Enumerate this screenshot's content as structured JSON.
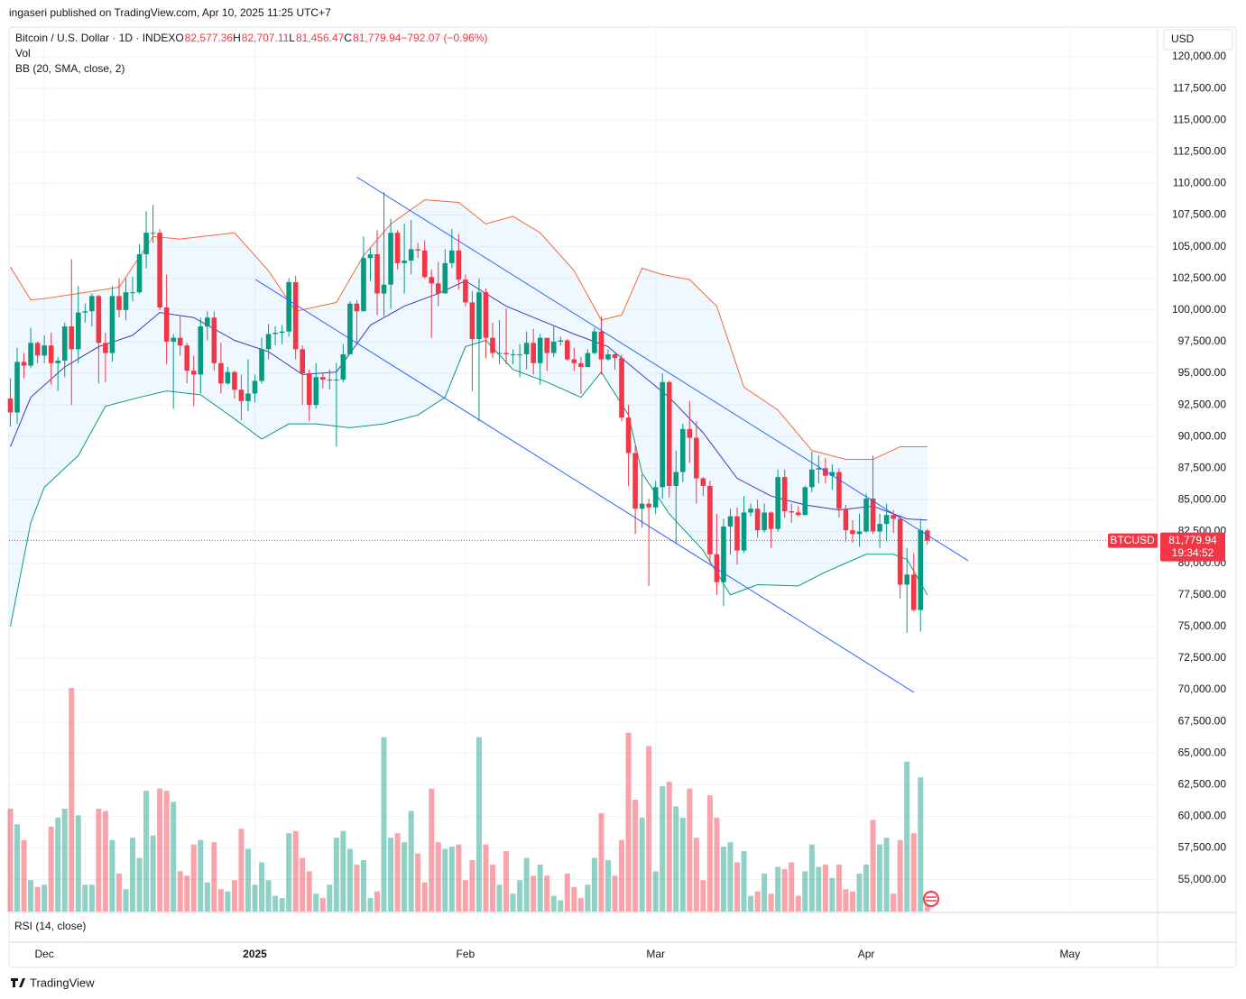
{
  "header": "ingaseri published on TradingView.com, Apr 10, 2025 11:25 UTC+7",
  "footer": "TradingView",
  "currency": "USD",
  "rsi_label": "RSI (14, close)",
  "chart_data": {
    "type": "candlestick",
    "legend": {
      "symbol": "Bitcoin / U.S. Dollar · 1D · INDEX",
      "o_label": "O",
      "o": "82,577.36",
      "h_label": "H",
      "h": "82,707.11",
      "l_label": "L",
      "l": "81,456.47",
      "c_label": "C",
      "c": "81,779.94",
      "change": "−792.07 (−0.96%)",
      "vol": "Vol",
      "bb": "BB (20, SMA, close, 2)"
    },
    "up_color": "#089981",
    "down_color": "#f23645",
    "grid": true,
    "xlim": [
      -0.2,
      168.9
    ],
    "xticks": [
      {
        "value": 5,
        "label": "Dec"
      },
      {
        "value": 36,
        "label": "2025"
      },
      {
        "value": 67,
        "label": "Feb"
      },
      {
        "value": 95,
        "label": "Mar"
      },
      {
        "value": 126,
        "label": "Apr"
      },
      {
        "value": 156,
        "label": "May"
      }
    ],
    "ylim": [
      52480,
      122350
    ],
    "yticks": [
      {
        "value": 55000,
        "label": "55,000.00"
      },
      {
        "value": 57500,
        "label": "57,500.00"
      },
      {
        "value": 60000,
        "label": "60,000.00"
      },
      {
        "value": 62500,
        "label": "62,500.00"
      },
      {
        "value": 65000,
        "label": "65,000.00"
      },
      {
        "value": 67500,
        "label": "67,500.00"
      },
      {
        "value": 70000,
        "label": "70,000.00"
      },
      {
        "value": 72500,
        "label": "72,500.00"
      },
      {
        "value": 75000,
        "label": "75,000.00"
      },
      {
        "value": 77500,
        "label": "77,500.00"
      },
      {
        "value": 80000,
        "label": "80,000.00"
      },
      {
        "value": 82500,
        "label": "82,500.00"
      },
      {
        "value": 85000,
        "label": "85,000.00"
      },
      {
        "value": 87500,
        "label": "87,500.00"
      },
      {
        "value": 90000,
        "label": "90,000.00"
      },
      {
        "value": 92500,
        "label": "92,500.00"
      },
      {
        "value": 95000,
        "label": "95,000.00"
      },
      {
        "value": 97500,
        "label": "97,500.00"
      },
      {
        "value": 100000,
        "label": "100,000.00"
      },
      {
        "value": 102500,
        "label": "102,500.00"
      },
      {
        "value": 105000,
        "label": "105,000.00"
      },
      {
        "value": 107500,
        "label": "107,500.00"
      },
      {
        "value": 110000,
        "label": "110,000.00"
      },
      {
        "value": 112500,
        "label": "112,500.00"
      },
      {
        "value": 115000,
        "label": "115,000.00"
      },
      {
        "value": 117500,
        "label": "117,500.00"
      },
      {
        "value": 120000,
        "label": "120,000.00"
      }
    ],
    "x": [
      0,
      1,
      2,
      3,
      4,
      5,
      6,
      7,
      8,
      9,
      10,
      11,
      12,
      13,
      14,
      15,
      16,
      17,
      18,
      19,
      20,
      21,
      22,
      23,
      24,
      25,
      26,
      27,
      28,
      29,
      30,
      31,
      32,
      33,
      34,
      35,
      36,
      37,
      38,
      39,
      40,
      41,
      42,
      43,
      44,
      45,
      46,
      47,
      48,
      49,
      50,
      51,
      52,
      53,
      54,
      55,
      56,
      57,
      58,
      59,
      60,
      61,
      62,
      63,
      64,
      65,
      66,
      67,
      68,
      69,
      70,
      71,
      72,
      73,
      74,
      75,
      76,
      77,
      78,
      79,
      80,
      81,
      82,
      83,
      84,
      85,
      86,
      87,
      88,
      89,
      90,
      91,
      92,
      93,
      94,
      95,
      96,
      97,
      98,
      99,
      100,
      101,
      102,
      103,
      104,
      105,
      106,
      107,
      108,
      109,
      110,
      111,
      112,
      113,
      114,
      115,
      116,
      117,
      118,
      119,
      120,
      121,
      122,
      123,
      124,
      125,
      126,
      127,
      128,
      129,
      130,
      131,
      132,
      133,
      134,
      135
    ],
    "open": [
      93000,
      91900,
      95900,
      95600,
      97400,
      96400,
      97200,
      95800,
      96000,
      98700,
      96900,
      99800,
      99900,
      101100,
      97400,
      96600,
      101100,
      100000,
      101400,
      101400,
      104400,
      106100,
      106100,
      100200,
      97500,
      97800,
      97200,
      95200,
      94900,
      98700,
      99400,
      95800,
      94200,
      95100,
      93700,
      92800,
      93400,
      94400,
      96900,
      98100,
      98200,
      98300,
      102200,
      96900,
      95000,
      92500,
      94700,
      94500,
      94500,
      94500,
      96500,
      100500,
      99900,
      104100,
      104400,
      101300,
      102000,
      106100,
      103700,
      103900,
      104800,
      104700,
      102600,
      102100,
      101300,
      103700,
      104700,
      102400,
      100600,
      97700,
      101400,
      97800,
      96600,
      96600,
      96500,
      96500,
      96500,
      97400,
      95800,
      97800,
      96600,
      97500,
      97600,
      96100,
      95800,
      95500,
      96600,
      98300,
      96100,
      96500,
      96200,
      91500,
      88700,
      84300,
      84700,
      84400,
      86000,
      94300,
      86100,
      87200,
      90600,
      89900,
      86700,
      86100,
      80700,
      78500,
      82900,
      83700,
      81000,
      84000,
      84300,
      82600,
      84000,
      82700,
      86800,
      84100,
      84000,
      83800,
      86000,
      87400,
      87500,
      86900,
      87200,
      84300,
      82600,
      82300,
      82500,
      85100,
      82500,
      83100,
      83800,
      83500,
      78300,
      79100,
      76300,
      82577.36
    ],
    "high": [
      94600,
      97000,
      96600,
      98600,
      97500,
      98000,
      98200,
      96300,
      99000,
      104000,
      101900,
      100500,
      101300,
      101200,
      98200,
      101900,
      102500,
      102500,
      102600,
      105200,
      107800,
      108300,
      106400,
      102800,
      98100,
      99500,
      97400,
      96400,
      99400,
      99900,
      99900,
      97400,
      95500,
      95200,
      94900,
      96100,
      94900,
      97800,
      98900,
      98700,
      98800,
      102500,
      102700,
      97200,
      95300,
      95800,
      95000,
      95300,
      95800,
      97300,
      100700,
      100800,
      105800,
      104900,
      106300,
      109300,
      107200,
      106300,
      106800,
      107100,
      105300,
      105500,
      103200,
      103800,
      104800,
      106400,
      106000,
      102800,
      101500,
      102500,
      101700,
      99000,
      99200,
      100100,
      96900,
      97300,
      98300,
      98500,
      98100,
      97300,
      98800,
      97900,
      97700,
      97000,
      96300,
      96900,
      98600,
      99500,
      96900,
      96600,
      96500,
      92500,
      89300,
      87000,
      85100,
      86500,
      95000,
      94400,
      88900,
      91000,
      92800,
      91200,
      86800,
      86500,
      83900,
      83500,
      84300,
      84400,
      85300,
      84700,
      85000,
      84700,
      84100,
      87400,
      87400,
      84700,
      84500,
      86100,
      88800,
      88500,
      88300,
      87800,
      87500,
      84600,
      83400,
      83900,
      85500,
      88500,
      83900,
      84700,
      84200,
      83800,
      81200,
      80800,
      83500,
      82707.11
    ],
    "low": [
      90800,
      91000,
      94600,
      95400,
      95800,
      95800,
      94100,
      93600,
      94700,
      92500,
      95800,
      99000,
      98700,
      94200,
      94300,
      95900,
      99400,
      99200,
      100700,
      101300,
      103300,
      105300,
      100000,
      95700,
      92200,
      96400,
      94200,
      92400,
      93400,
      97600,
      95200,
      93400,
      94100,
      93000,
      91300,
      92000,
      92700,
      94200,
      96100,
      97200,
      97300,
      97900,
      96100,
      92500,
      91200,
      92200,
      93800,
      93700,
      89200,
      94300,
      96500,
      97300,
      99900,
      102300,
      99600,
      99500,
      100100,
      103200,
      101300,
      102800,
      104100,
      102500,
      97800,
      100300,
      101300,
      103300,
      101600,
      100300,
      93600,
      91200,
      96200,
      96200,
      95700,
      95700,
      95700,
      94700,
      95300,
      94900,
      94100,
      95200,
      96300,
      97200,
      96000,
      95200,
      93400,
      95500,
      96500,
      94900,
      96000,
      95300,
      91200,
      86100,
      82300,
      82800,
      78200,
      83900,
      85100,
      85200,
      81500,
      86400,
      87900,
      84700,
      85300,
      80000,
      77500,
      76600,
      80700,
      79900,
      80800,
      83700,
      82000,
      82400,
      81200,
      82500,
      83600,
      83200,
      83700,
      83800,
      85600,
      86300,
      86300,
      85800,
      83600,
      81700,
      81600,
      81300,
      82400,
      82300,
      81200,
      81700,
      82400,
      77200,
      74500,
      76200,
      74600,
      81456.47
    ],
    "close": [
      91900,
      95900,
      95600,
      97400,
      96400,
      97200,
      95800,
      96000,
      98700,
      96900,
      99800,
      99900,
      101100,
      97400,
      96600,
      101100,
      100000,
      101400,
      101400,
      104400,
      106100,
      106100,
      100200,
      97500,
      97800,
      97200,
      95200,
      94900,
      98700,
      99400,
      95800,
      94200,
      95100,
      93700,
      92800,
      93400,
      94400,
      96900,
      98100,
      98200,
      98300,
      102200,
      96900,
      95000,
      92500,
      94700,
      94500,
      94500,
      94500,
      96500,
      100500,
      99900,
      104100,
      104400,
      101300,
      102000,
      106100,
      103700,
      103900,
      104800,
      104700,
      102600,
      102100,
      101300,
      103700,
      104700,
      102400,
      100600,
      97700,
      101400,
      97800,
      96600,
      96600,
      96500,
      96500,
      96500,
      97400,
      95800,
      97800,
      96600,
      97500,
      97600,
      96100,
      95800,
      95500,
      96600,
      98300,
      96100,
      96500,
      96200,
      91500,
      88700,
      84300,
      84700,
      84400,
      86000,
      94300,
      86100,
      87200,
      90600,
      89900,
      86700,
      86100,
      80700,
      78500,
      82900,
      83700,
      81000,
      84000,
      84300,
      82600,
      84000,
      82700,
      86800,
      84100,
      84000,
      83800,
      86000,
      87400,
      87500,
      86900,
      87200,
      84300,
      82600,
      82300,
      82500,
      85100,
      82500,
      83100,
      83800,
      83500,
      78300,
      79100,
      76300,
      82600,
      81779.94
    ],
    "volume_lim": [
      0,
      100
    ],
    "volume": [
      46,
      39,
      32,
      14,
      11,
      12,
      38,
      42,
      46,
      100,
      43,
      12,
      12,
      46,
      45,
      32,
      17,
      10,
      33,
      24,
      54,
      34,
      55,
      54,
      49,
      18,
      16,
      30,
      32,
      13,
      31,
      10,
      9,
      14,
      37,
      28,
      12,
      22,
      14,
      7,
      6,
      35,
      36,
      24,
      18,
      8,
      6,
      12,
      33,
      36,
      28,
      21,
      23,
      6,
      9,
      78,
      33,
      35,
      31,
      45,
      26,
      13,
      55,
      31,
      28,
      29,
      30,
      14,
      23,
      78,
      30,
      21,
      12,
      27,
      8,
      14,
      24,
      16,
      21,
      16,
      7,
      5,
      17,
      11,
      6,
      12,
      24,
      44,
      23,
      16,
      32,
      80,
      50,
      42,
      74,
      18,
      56,
      58,
      47,
      42,
      55,
      33,
      14,
      52,
      42,
      29,
      31,
      22,
      27,
      7,
      9,
      17,
      8,
      20,
      19,
      22,
      7,
      18,
      30,
      20,
      21,
      15,
      21,
      10,
      9,
      17,
      21,
      41,
      30,
      33,
      8,
      32,
      67,
      35,
      60,
      8
    ],
    "bollinger": [
      {
        "color": "#f26b3a",
        "x": [
          0,
          3,
          5,
          10,
          16,
          21,
          25,
          33,
          38,
          42,
          48,
          52,
          56,
          61,
          66,
          70,
          74,
          78,
          83,
          87,
          90,
          93,
          96,
          100,
          104,
          108,
          113,
          118,
          123,
          127,
          131,
          135
        ],
        "values": [
          103400,
          100800,
          100900,
          101300,
          101800,
          105800,
          105600,
          106100,
          103100,
          99900,
          100600,
          104300,
          106800,
          108700,
          108500,
          106800,
          107400,
          106100,
          103100,
          99200,
          99600,
          103300,
          102800,
          102400,
          100300,
          93900,
          92100,
          88900,
          88200,
          88200,
          89200,
          89200
        ]
      },
      {
        "color": "#3d3ab8",
        "x": [
          0,
          3,
          8,
          13,
          18,
          22,
          27,
          33,
          38,
          43,
          48,
          53,
          58,
          63,
          67,
          73,
          78,
          83,
          88,
          92,
          97,
          102,
          107,
          112,
          117,
          122,
          127,
          132,
          135
        ],
        "values": [
          89200,
          93100,
          95500,
          97100,
          98000,
          99800,
          99400,
          97600,
          96700,
          94900,
          95100,
          98800,
          100300,
          101300,
          102300,
          100300,
          99200,
          98100,
          97100,
          95300,
          93100,
          90300,
          86700,
          85300,
          84600,
          84200,
          84500,
          83500,
          83400
        ]
      },
      {
        "color": "#089981",
        "x": [
          0,
          3,
          5,
          10,
          14,
          19,
          23,
          28,
          33,
          37,
          41,
          45,
          50,
          55,
          60,
          64,
          67,
          70,
          74,
          79,
          84,
          87,
          91,
          93,
          97,
          102,
          106,
          110,
          116,
          120,
          126,
          130,
          132,
          135
        ],
        "values": [
          75000,
          83200,
          86000,
          88500,
          92400,
          93100,
          93600,
          93300,
          91400,
          89800,
          91000,
          91000,
          90700,
          91000,
          91700,
          93100,
          97100,
          97600,
          95300,
          94300,
          93100,
          95100,
          91700,
          87100,
          83900,
          81000,
          77500,
          78300,
          78200,
          79300,
          80700,
          80700,
          80300,
          77500
        ]
      }
    ],
    "trendlines": [
      {
        "color": "#2962ff",
        "x": [
          51,
          141
        ],
        "values": [
          110500,
          80200
        ]
      },
      {
        "color": "#2962ff",
        "x": [
          36.1,
          133
        ],
        "values": [
          102400,
          69800
        ]
      }
    ],
    "last_price": 81779.94,
    "price_tag": {
      "symbol": "BTCUSD",
      "price": "81,779.94",
      "countdown": "19:34:52"
    }
  }
}
